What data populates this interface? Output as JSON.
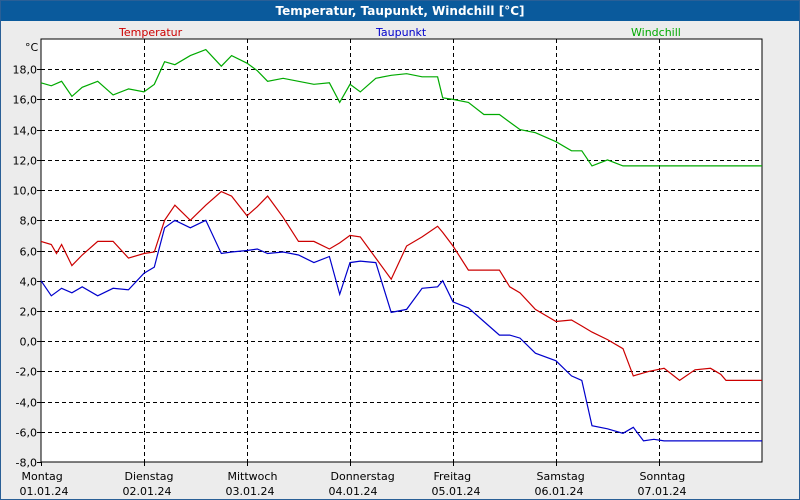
{
  "window": {
    "title": "Temperatur, Taupunkt, Windchill [°C]"
  },
  "chart_data": {
    "type": "line",
    "title": "Temperatur, Taupunkt, Windchill [°C]",
    "ylabel": "°C",
    "ylim": [
      -8,
      20
    ],
    "yticks": [
      18,
      16,
      14,
      12,
      10,
      8,
      6,
      4,
      2,
      0,
      -2,
      -4,
      -6,
      -8
    ],
    "ytick_labels": [
      "18,0",
      "16,0",
      "14,0",
      "12,0",
      "10,0",
      "8,0",
      "6,0",
      "4,0",
      "2,0",
      "0,0",
      "-2,0",
      "-4,0",
      "-6,0",
      "-8,0"
    ],
    "xlim": [
      0,
      7
    ],
    "x_categories": [
      {
        "day": "Montag",
        "date": "01.01.24"
      },
      {
        "day": "Dienstag",
        "date": "02.01.24"
      },
      {
        "day": "Mittwoch",
        "date": "03.01.24"
      },
      {
        "day": "Donnerstag",
        "date": "04.01.24"
      },
      {
        "day": "Freitag",
        "date": "05.01.24"
      },
      {
        "day": "Samstag",
        "date": "06.01.24"
      },
      {
        "day": "Sonntag",
        "date": "07.01.24"
      }
    ],
    "grid": true,
    "legend_position": "top",
    "series": [
      {
        "name": "Temperatur",
        "color": "#cc0000",
        "x": [
          0,
          0.1,
          0.15,
          0.2,
          0.3,
          0.4,
          0.55,
          0.7,
          0.85,
          1.0,
          1.1,
          1.2,
          1.3,
          1.45,
          1.6,
          1.75,
          1.85,
          2.0,
          2.1,
          2.2,
          2.35,
          2.5,
          2.65,
          2.8,
          2.9,
          3.0,
          3.1,
          3.25,
          3.4,
          3.55,
          3.7,
          3.85,
          3.9,
          4.0,
          4.15,
          4.3,
          4.45,
          4.55,
          4.65,
          4.8,
          5.0,
          5.15,
          5.25,
          5.35,
          5.5,
          5.65,
          5.75,
          5.9,
          6.05,
          6.2,
          6.35,
          6.5,
          6.6,
          6.65,
          6.75,
          6.85,
          6.95,
          7.0
        ],
        "values": [
          6.6,
          6.4,
          5.8,
          6.4,
          5.0,
          5.7,
          6.6,
          6.6,
          5.5,
          5.8,
          5.9,
          8.0,
          9.0,
          8.0,
          9.0,
          9.9,
          9.6,
          8.3,
          8.9,
          9.6,
          8.2,
          6.6,
          6.6,
          6.1,
          6.5,
          7.0,
          6.9,
          5.5,
          4.1,
          6.3,
          6.9,
          7.6,
          7.2,
          6.3,
          4.7,
          4.7,
          4.7,
          3.6,
          3.2,
          2.1,
          1.3,
          1.4,
          1.0,
          0.6,
          0.1,
          -0.5,
          -2.3,
          -2.0,
          -1.8,
          -2.6,
          -1.9,
          -1.8,
          -2.2,
          -2.6,
          -2.6,
          -2.6,
          -2.6,
          -2.6
        ]
      },
      {
        "name": "Taupunkt",
        "color": "#0000cc",
        "x": [
          0,
          0.1,
          0.2,
          0.3,
          0.4,
          0.55,
          0.7,
          0.85,
          1.0,
          1.1,
          1.2,
          1.3,
          1.45,
          1.6,
          1.75,
          1.85,
          2.0,
          2.1,
          2.2,
          2.35,
          2.5,
          2.65,
          2.8,
          2.9,
          3.0,
          3.1,
          3.25,
          3.4,
          3.55,
          3.7,
          3.85,
          3.9,
          4.0,
          4.15,
          4.3,
          4.45,
          4.55,
          4.65,
          4.8,
          5.0,
          5.15,
          5.25,
          5.35,
          5.5,
          5.65,
          5.75,
          5.85,
          5.95,
          6.05,
          6.15,
          6.25,
          6.35,
          6.45,
          6.55,
          6.65,
          6.75,
          6.85,
          6.95,
          7.0
        ],
        "values": [
          4.0,
          3.0,
          3.5,
          3.2,
          3.6,
          3.0,
          3.5,
          3.4,
          4.5,
          4.9,
          7.5,
          8.0,
          7.5,
          8.0,
          5.8,
          5.9,
          6.0,
          6.1,
          5.8,
          5.9,
          5.7,
          5.2,
          5.6,
          3.1,
          5.2,
          5.3,
          5.2,
          1.9,
          2.1,
          3.5,
          3.6,
          4.0,
          2.6,
          2.2,
          1.3,
          0.4,
          0.4,
          0.2,
          -0.8,
          -1.3,
          -2.3,
          -2.6,
          -5.6,
          -5.8,
          -6.1,
          -5.7,
          -6.6,
          -6.5,
          -6.6,
          -6.6,
          -6.6,
          -6.6,
          -6.6,
          -6.6,
          -6.6,
          -6.6,
          -6.6,
          -6.6,
          -6.6
        ]
      },
      {
        "name": "Windchill",
        "color": "#00aa00",
        "x": [
          0,
          0.1,
          0.2,
          0.3,
          0.4,
          0.55,
          0.7,
          0.85,
          1.0,
          1.1,
          1.2,
          1.3,
          1.45,
          1.6,
          1.75,
          1.85,
          2.0,
          2.1,
          2.2,
          2.35,
          2.5,
          2.65,
          2.8,
          2.9,
          3.0,
          3.1,
          3.25,
          3.4,
          3.55,
          3.7,
          3.85,
          3.9,
          4.0,
          4.15,
          4.3,
          4.45,
          4.55,
          4.65,
          4.8,
          5.0,
          5.15,
          5.25,
          5.35,
          5.5,
          5.65,
          5.75,
          5.85,
          5.95,
          6.05,
          6.15,
          6.25,
          6.35,
          6.45,
          6.55,
          6.65,
          6.75,
          6.85,
          6.95,
          7.0
        ],
        "values": [
          17.1,
          16.9,
          17.2,
          16.2,
          16.8,
          17.2,
          16.3,
          16.7,
          16.5,
          17.0,
          18.5,
          18.3,
          18.9,
          19.3,
          18.2,
          18.9,
          18.4,
          17.9,
          17.2,
          17.4,
          17.2,
          17.0,
          17.1,
          15.8,
          17.0,
          16.5,
          17.4,
          17.6,
          17.7,
          17.5,
          17.5,
          16.1,
          16.0,
          15.8,
          15.0,
          15.0,
          14.5,
          14.0,
          13.8,
          13.2,
          12.6,
          12.6,
          11.6,
          12.0,
          11.6,
          11.6,
          11.6,
          11.6,
          11.6,
          11.6,
          11.6,
          11.6,
          11.6,
          11.6,
          11.6,
          11.6,
          11.6,
          11.6,
          11.6
        ]
      }
    ]
  }
}
